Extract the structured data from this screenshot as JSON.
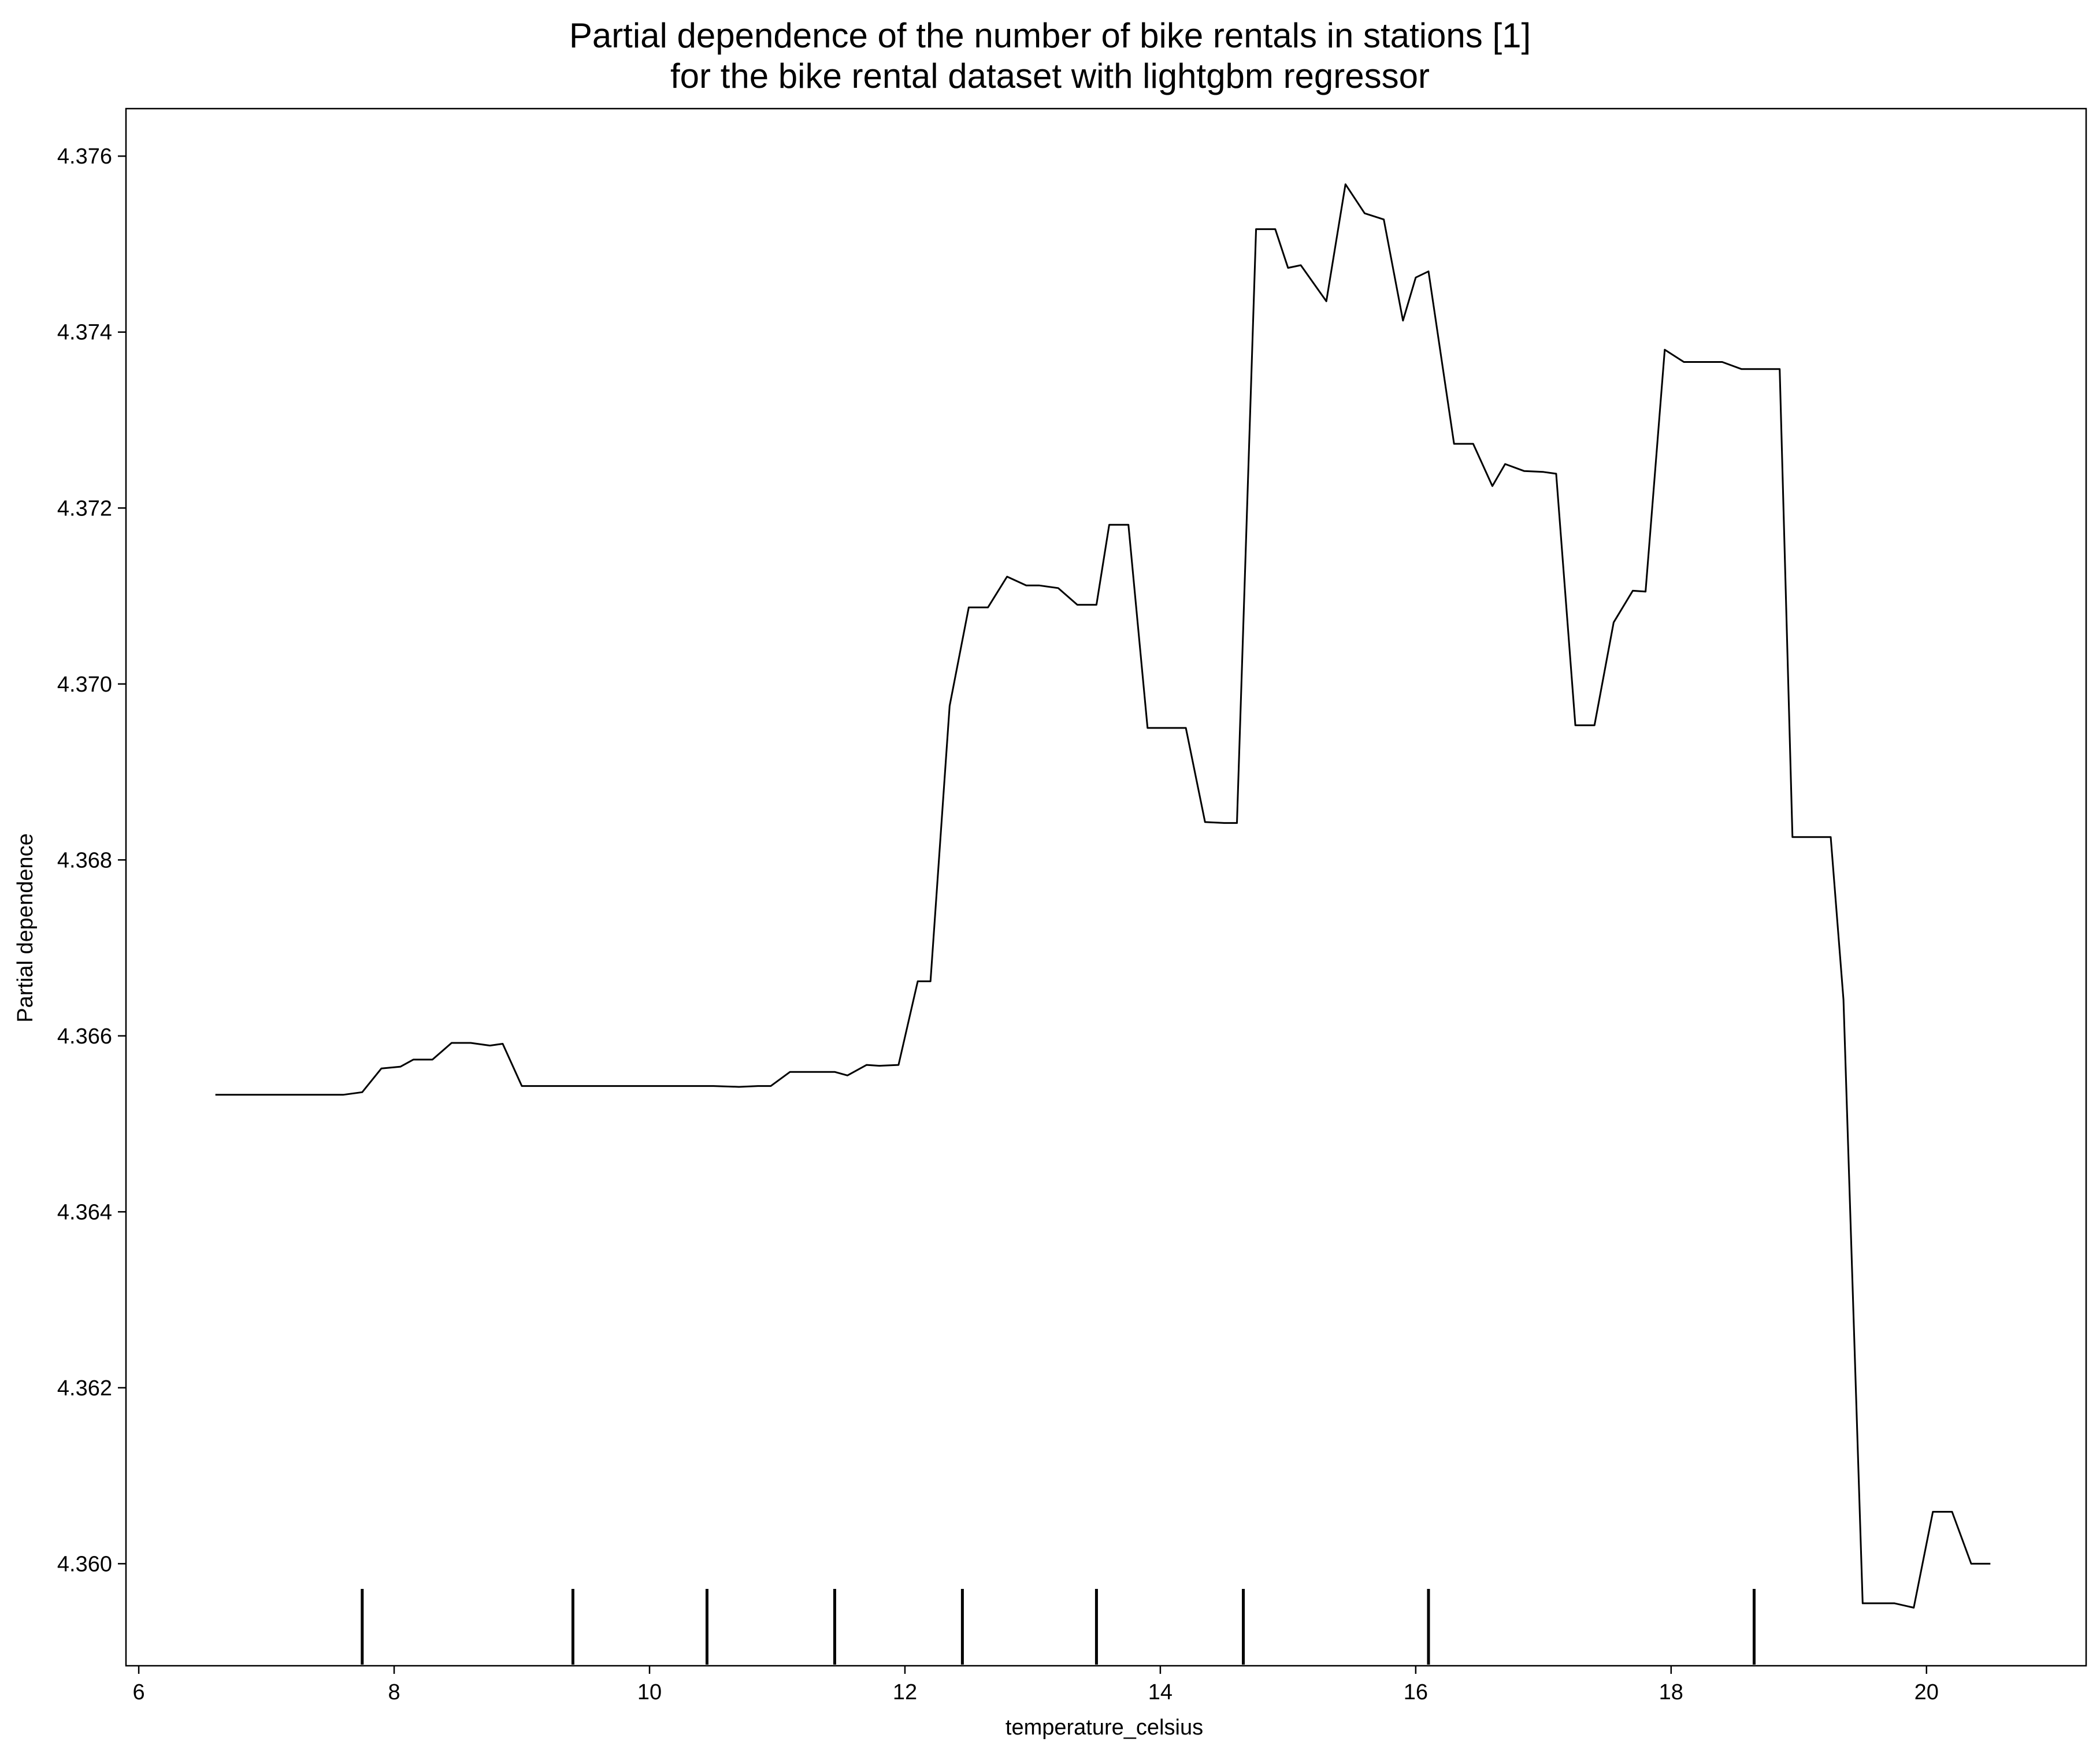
{
  "chart_data": {
    "type": "line",
    "title": [
      "Partial dependence of the number of bike rentals in stations [1]",
      "for the bike rental dataset with lightgbm regressor"
    ],
    "xlabel": "temperature_celsius",
    "ylabel": "Partial dependence",
    "xlim": [
      5.9,
      21.25
    ],
    "ylim": [
      4.35884,
      4.37654
    ],
    "xticks": [
      6,
      8,
      10,
      12,
      14,
      16,
      18,
      20
    ],
    "xtick_labels": [
      "6",
      "8",
      "10",
      "12",
      "14",
      "16",
      "18",
      "20"
    ],
    "yticks": [
      4.36,
      4.362,
      4.364,
      4.366,
      4.368,
      4.37,
      4.372,
      4.374,
      4.376
    ],
    "ytick_labels": [
      "4.360",
      "4.362",
      "4.364",
      "4.366",
      "4.368",
      "4.370",
      "4.372",
      "4.374",
      "4.376"
    ],
    "grid": false,
    "line_color": "#000000",
    "series": [
      {
        "x": [
          6.6,
          7.6,
          7.75,
          7.9,
          8.05,
          8.15,
          8.3,
          8.45,
          8.6,
          8.75,
          8.85,
          9.0,
          9.3,
          10.0,
          10.5,
          10.7,
          10.85,
          10.95,
          11.1,
          11.45,
          11.55,
          11.7,
          11.8,
          11.95,
          12.1,
          12.2,
          12.35,
          12.5,
          12.65,
          12.8,
          12.95,
          13.05,
          13.2,
          13.35,
          13.5,
          13.6,
          13.75,
          13.9,
          14.05,
          14.2,
          14.35,
          14.5,
          14.6,
          14.75,
          14.9,
          15.0,
          15.1,
          15.3,
          15.45,
          15.6,
          15.75,
          15.9,
          16.0,
          16.1,
          16.3,
          16.45,
          16.6,
          16.7,
          16.85,
          17.0,
          17.1,
          17.25,
          17.4,
          17.55,
          17.7,
          17.8,
          17.95,
          18.1,
          18.25,
          18.4,
          18.55,
          18.7,
          18.85,
          18.95,
          19.1,
          19.25,
          19.35,
          19.5,
          19.6,
          19.75,
          19.9,
          20.05,
          20.2,
          20.35,
          20.5
        ],
        "y": [
          4.36533,
          4.36533,
          4.36536,
          4.36563,
          4.36565,
          4.36573,
          4.36573,
          4.36592,
          4.36592,
          4.36589,
          4.36591,
          4.36543,
          4.36543,
          4.36543,
          4.36543,
          4.36542,
          4.36543,
          4.36543,
          4.36559,
          4.36559,
          4.36555,
          4.36567,
          4.36566,
          4.36567,
          4.36662,
          4.36662,
          4.36975,
          4.37087,
          4.37087,
          4.37122,
          4.37112,
          4.37112,
          4.37109,
          4.3709,
          4.3709,
          4.37181,
          4.37181,
          4.3695,
          4.3695,
          4.3695,
          4.36843,
          4.36842,
          4.36842,
          4.37517,
          4.37517,
          4.37473,
          4.37476,
          4.37435,
          4.37568,
          4.37535,
          4.37528,
          4.37413,
          4.37462,
          4.37469,
          4.37273,
          4.37273,
          4.37225,
          4.3725,
          4.37242,
          4.37241,
          4.37239,
          4.36953,
          4.36953,
          4.3707,
          4.37106,
          4.37105,
          4.3738,
          4.37366,
          4.37366,
          4.37366,
          4.37358,
          4.37358,
          4.37358,
          4.36826,
          4.36826,
          4.36826,
          4.36641,
          4.35955,
          4.35955,
          4.35955,
          4.3595,
          4.36059,
          4.36059,
          4.36,
          4.36
        ]
      }
    ],
    "rug_deciles": [
      7.75,
      9.4,
      10.45,
      11.45,
      12.45,
      13.5,
      14.65,
      16.1,
      18.65
    ]
  }
}
